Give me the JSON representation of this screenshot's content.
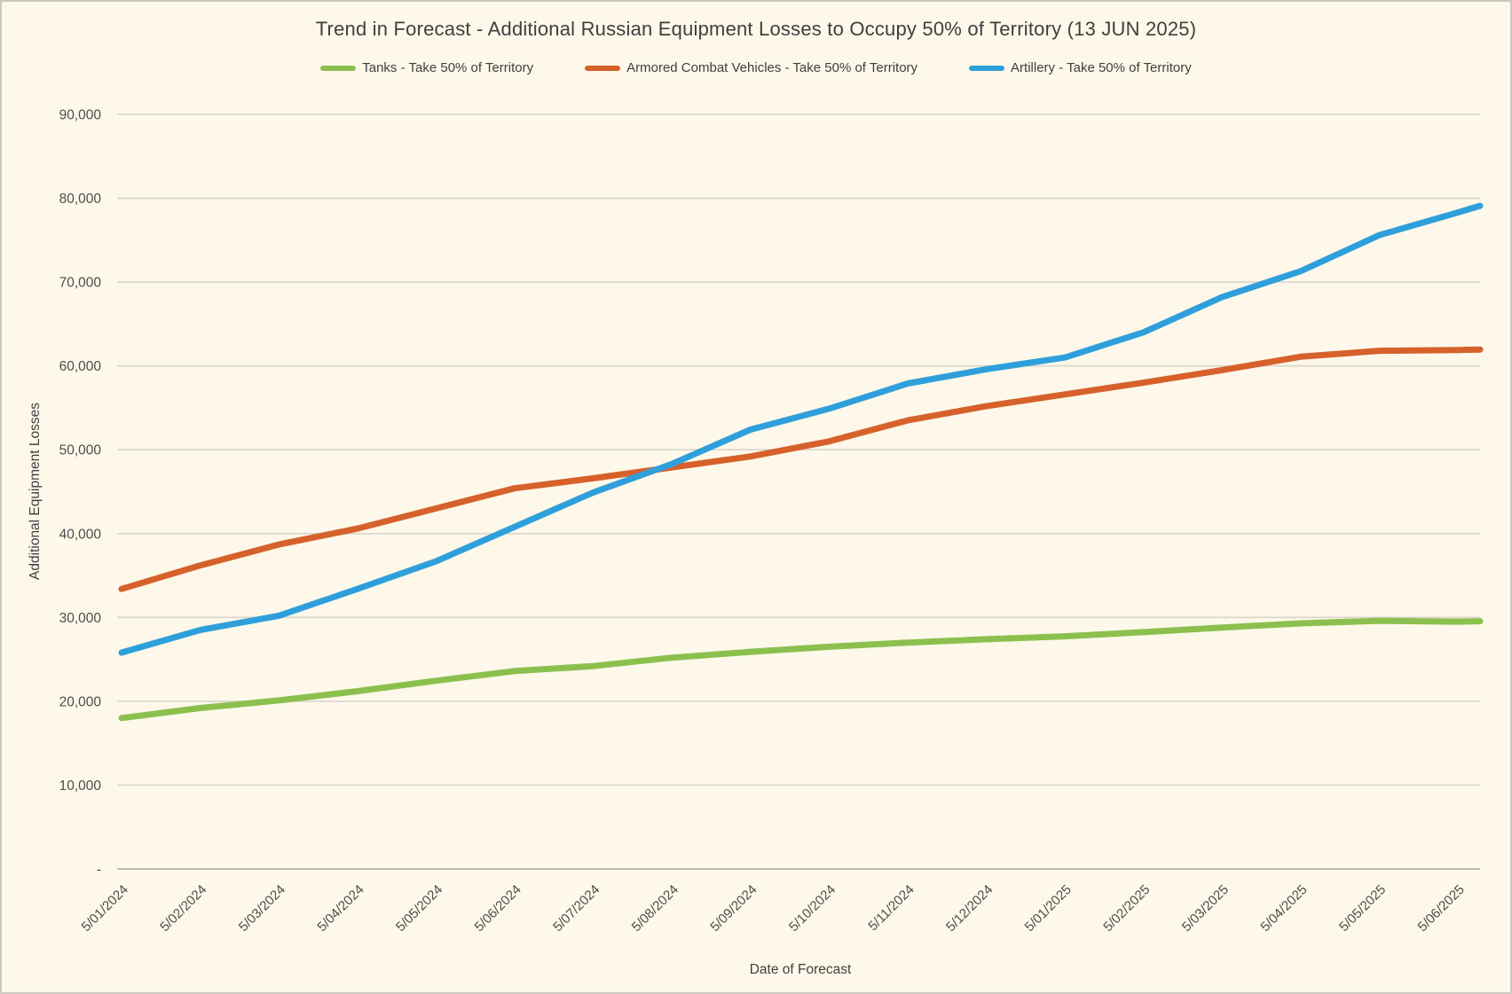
{
  "title": "Trend in Forecast - Additional Russian Equipment Losses to Occupy 50% of Territory (13 JUN 2025)",
  "axes": {
    "xlabel": "Date of Forecast",
    "ylabel": "Additional Equipment Losses"
  },
  "colors": {
    "background": "#FDF8E9",
    "border": "#CBC7BE",
    "gridline": "#D9D5CB",
    "zero_line": "#C1BDB3",
    "title_text": "#3F3F3F",
    "tick_text": "#4D4D4D",
    "tanks": "#8CC04E",
    "acv": "#D6612B",
    "artillery": "#2F9FDC"
  },
  "chart_data": {
    "type": "line",
    "title": "Trend in Forecast - Additional Russian Equipment Losses to Occupy 50% of Territory (13 JUN 2025)",
    "xlabel": "Date of Forecast",
    "ylabel": "Additional Equipment Losses",
    "ylim": [
      0,
      90000
    ],
    "grid": "horizontal",
    "legend_position": "top",
    "final_date": "13 JUN 2025",
    "y_ticks": [
      "-",
      "10,000",
      "20,000",
      "30,000",
      "40,000",
      "50,000",
      "60,000",
      "70,000",
      "80,000",
      "90,000"
    ],
    "categories": [
      "5/01/2024",
      "5/02/2024",
      "5/03/2024",
      "5/04/2024",
      "5/05/2024",
      "5/06/2024",
      "5/07/2024",
      "5/08/2024",
      "5/09/2024",
      "5/10/2024",
      "5/11/2024",
      "5/12/2024",
      "5/01/2025",
      "5/02/2025",
      "5/03/2025",
      "5/04/2025",
      "5/05/2025",
      "5/06/2025"
    ],
    "series": [
      {
        "name": "Tanks - Take 50% of Territory",
        "color_key": "tanks",
        "values": [
          18000,
          19200,
          20100,
          21200,
          22450,
          23600,
          24200,
          25200,
          25900,
          26500,
          27000,
          27400,
          27750,
          28250,
          28800,
          29300,
          29600,
          29500,
          29550
        ]
      },
      {
        "name": "Armored Combat Vehicles - Take 50% of Territory",
        "color_key": "acv",
        "values": [
          33400,
          36200,
          38700,
          40600,
          43000,
          45400,
          46600,
          47900,
          49200,
          51000,
          53500,
          55200,
          56600,
          58000,
          59500,
          61100,
          61800,
          61900,
          61950
        ]
      },
      {
        "name": "Artillery - Take 50% of Territory",
        "color_key": "artillery",
        "values": [
          25800,
          28500,
          30200,
          33400,
          36700,
          40800,
          44900,
          48300,
          52400,
          54900,
          57900,
          59600,
          61000,
          64000,
          68200,
          71300,
          75600,
          78300,
          79100
        ]
      }
    ],
    "note_last_value_is_final_forecast_point": "the 19th value of each series is the 13 JUN 2025 point drawn just past the last axis tick"
  }
}
